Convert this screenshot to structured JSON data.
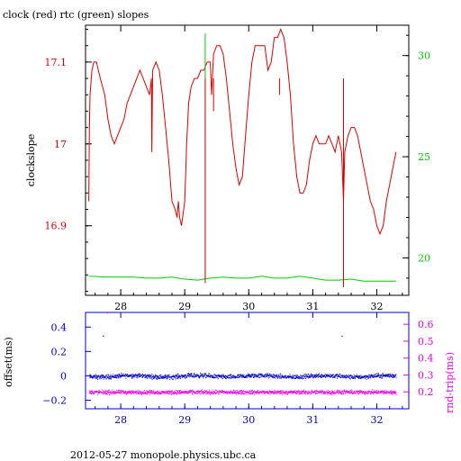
{
  "title": "clock (red) rtc (green) slopes",
  "footer": "2012-05-27  monopole.physics.ubc.ca",
  "colors": {
    "clock": "#dd0000",
    "rtc": "#00cc00",
    "offset": "#0000cc",
    "rndtrip": "#ee00ee",
    "axis": "#000000"
  },
  "chart_data": [
    {
      "type": "line",
      "title": "clock (red) rtc (green) slopes",
      "xlabel": "",
      "ylabel": "clockslope",
      "y2label": "",
      "xlim": [
        27.45,
        32.5
      ],
      "ylim": [
        16.815,
        17.145
      ],
      "y2lim": [
        18.15,
        31.5
      ],
      "xticks": [
        28,
        29,
        30,
        31,
        32
      ],
      "yticks": [
        16.9,
        17,
        17.1
      ],
      "y2ticks": [
        20,
        25,
        30
      ],
      "series": [
        {
          "name": "clock",
          "axis": "left",
          "x": [
            27.5,
            27.51,
            27.52,
            27.53,
            27.55,
            27.58,
            27.62,
            27.68,
            27.75,
            27.8,
            27.85,
            27.9,
            27.95,
            28.0,
            28.05,
            28.1,
            28.15,
            28.2,
            28.25,
            28.3,
            28.35,
            28.4,
            28.45,
            28.48,
            28.485,
            28.5,
            28.55,
            28.6,
            28.65,
            28.7,
            28.75,
            28.8,
            28.85,
            28.88,
            28.9,
            28.92,
            28.95,
            29.0,
            29.03,
            29.06,
            29.1,
            29.15,
            29.2,
            29.25,
            29.3,
            29.35,
            29.4,
            29.42,
            29.45,
            29.5,
            29.55,
            29.6,
            29.65,
            29.7,
            29.75,
            29.8,
            29.85,
            29.9,
            29.95,
            30.0,
            30.05,
            30.1,
            30.15,
            30.2,
            30.25,
            30.3,
            30.35,
            30.4,
            30.45,
            30.5,
            30.55,
            30.6,
            30.65,
            30.7,
            30.75,
            30.8,
            30.85,
            30.9,
            30.95,
            31.0,
            31.05,
            31.1,
            31.15,
            31.2,
            31.25,
            31.3,
            31.35,
            31.4,
            31.45,
            31.48,
            31.5,
            31.55,
            31.6,
            31.65,
            31.7,
            31.75,
            31.8,
            31.85,
            31.9,
            31.95,
            32.0,
            32.05,
            32.1,
            32.15,
            32.2,
            32.25,
            32.3
          ],
          "y": [
            16.93,
            17.02,
            17.06,
            17.07,
            17.09,
            17.1,
            17.1,
            17.08,
            17.06,
            17.03,
            17.01,
            17.0,
            17.01,
            17.02,
            17.03,
            17.05,
            17.06,
            17.07,
            17.08,
            17.09,
            17.08,
            17.07,
            17.06,
            17.08,
            16.99,
            17.09,
            17.1,
            17.09,
            17.06,
            17.02,
            16.98,
            16.93,
            16.92,
            16.91,
            16.93,
            16.91,
            16.9,
            16.93,
            17.0,
            17.05,
            17.07,
            17.08,
            17.08,
            17.09,
            17.09,
            17.1,
            17.1,
            17.06,
            17.11,
            17.12,
            17.12,
            17.11,
            17.08,
            17.04,
            17.0,
            16.97,
            16.95,
            16.96,
            17.01,
            17.06,
            17.1,
            17.12,
            17.12,
            17.12,
            17.12,
            17.09,
            17.1,
            17.13,
            17.13,
            17.14,
            17.13,
            17.1,
            17.06,
            17.0,
            16.96,
            16.94,
            16.94,
            16.95,
            16.98,
            17.0,
            17.01,
            17.0,
            17.0,
            17.0,
            17.01,
            17.0,
            16.99,
            17.01,
            16.99,
            16.93,
            16.99,
            17.01,
            17.02,
            17.02,
            17.01,
            16.99,
            16.97,
            16.95,
            16.93,
            16.92,
            16.9,
            16.89,
            16.9,
            16.93,
            16.95,
            16.97,
            16.99
          ]
        },
        {
          "name": "rtc",
          "axis": "right",
          "x": [
            27.5,
            27.8,
            28.0,
            28.2,
            28.4,
            28.6,
            28.8,
            29.0,
            29.2,
            29.4,
            29.6,
            29.8,
            30.0,
            30.2,
            30.4,
            30.6,
            30.8,
            31.0,
            31.2,
            31.4,
            31.6,
            31.8,
            32.0,
            32.3
          ],
          "y": [
            19.1,
            19.05,
            19.05,
            19.05,
            19.0,
            19.0,
            19.05,
            18.95,
            18.9,
            19.0,
            19.05,
            19.0,
            19.0,
            19.1,
            19.0,
            19.0,
            19.1,
            19.0,
            18.9,
            18.9,
            18.95,
            18.85,
            18.85,
            18.85
          ]
        }
      ],
      "spikes": [
        {
          "series": "rtc",
          "x": 29.32,
          "y": 31.1
        },
        {
          "series": "clock",
          "x": 29.32,
          "y": 16.83
        },
        {
          "series": "clock",
          "x": 29.45,
          "y": 17.04
        },
        {
          "series": "clock",
          "x": 30.48,
          "y": 17.06
        },
        {
          "series": "clock",
          "x": 31.48,
          "y": 16.825
        }
      ]
    },
    {
      "type": "scatter",
      "xlabel": "",
      "ylabel": "offset(ms)",
      "y2label": "rnd-trip(ms)",
      "xlim": [
        27.45,
        32.5
      ],
      "ylim": [
        -0.27,
        0.52
      ],
      "y2lim": [
        0.1,
        0.67
      ],
      "xticks": [
        28,
        29,
        30,
        31,
        32
      ],
      "yticks": [
        -0.2,
        0,
        0.2,
        0.4
      ],
      "y2ticks": [
        0.2,
        0.3,
        0.4,
        0.5,
        0.6
      ],
      "series": [
        {
          "name": "offset",
          "axis": "left",
          "center": 0.0,
          "spread": 0.018
        },
        {
          "name": "rnd-trip",
          "axis": "right",
          "center": 0.2,
          "spread": 0.012
        }
      ],
      "outliers": [
        {
          "series": "rnd-trip",
          "x": 27.78,
          "y": 0.67
        },
        {
          "series": "offset",
          "x": 27.72,
          "y": 0.33
        },
        {
          "series": "offset",
          "x": 31.45,
          "y": 0.33
        }
      ]
    }
  ]
}
